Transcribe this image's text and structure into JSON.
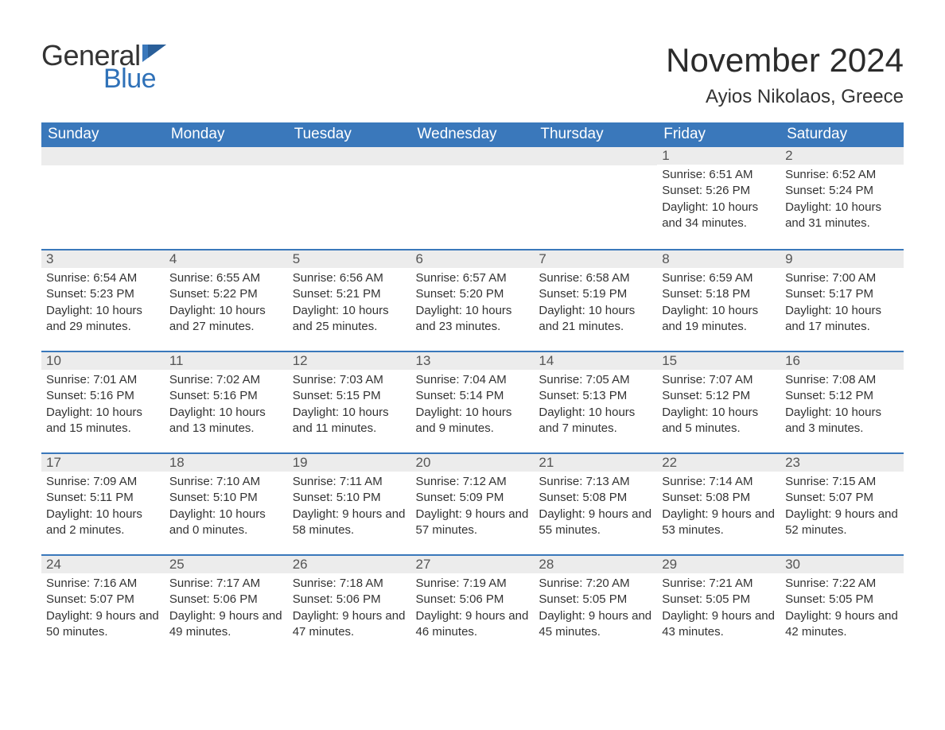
{
  "brand": {
    "word1": "General",
    "word2": "Blue"
  },
  "title": "November 2024",
  "location": "Ayios Nikolaos, Greece",
  "colors": {
    "header_bg": "#3a78bb",
    "header_text": "#ffffff",
    "daynum_bg": "#ececec",
    "border_top": "#3a78bb",
    "text": "#333333",
    "brand_blue": "#2f71b8",
    "page_bg": "#ffffff"
  },
  "typography": {
    "title_fontsize": 42,
    "location_fontsize": 24,
    "header_fontsize": 19,
    "daynum_fontsize": 17,
    "body_fontsize": 15
  },
  "calendar": {
    "columns": [
      "Sunday",
      "Monday",
      "Tuesday",
      "Wednesday",
      "Thursday",
      "Friday",
      "Saturday"
    ],
    "weeks": [
      [
        {
          "empty": true
        },
        {
          "empty": true
        },
        {
          "empty": true
        },
        {
          "empty": true
        },
        {
          "empty": true
        },
        {
          "day": "1",
          "sunrise": "Sunrise: 6:51 AM",
          "sunset": "Sunset: 5:26 PM",
          "daylight": "Daylight: 10 hours and 34 minutes."
        },
        {
          "day": "2",
          "sunrise": "Sunrise: 6:52 AM",
          "sunset": "Sunset: 5:24 PM",
          "daylight": "Daylight: 10 hours and 31 minutes."
        }
      ],
      [
        {
          "day": "3",
          "sunrise": "Sunrise: 6:54 AM",
          "sunset": "Sunset: 5:23 PM",
          "daylight": "Daylight: 10 hours and 29 minutes."
        },
        {
          "day": "4",
          "sunrise": "Sunrise: 6:55 AM",
          "sunset": "Sunset: 5:22 PM",
          "daylight": "Daylight: 10 hours and 27 minutes."
        },
        {
          "day": "5",
          "sunrise": "Sunrise: 6:56 AM",
          "sunset": "Sunset: 5:21 PM",
          "daylight": "Daylight: 10 hours and 25 minutes."
        },
        {
          "day": "6",
          "sunrise": "Sunrise: 6:57 AM",
          "sunset": "Sunset: 5:20 PM",
          "daylight": "Daylight: 10 hours and 23 minutes."
        },
        {
          "day": "7",
          "sunrise": "Sunrise: 6:58 AM",
          "sunset": "Sunset: 5:19 PM",
          "daylight": "Daylight: 10 hours and 21 minutes."
        },
        {
          "day": "8",
          "sunrise": "Sunrise: 6:59 AM",
          "sunset": "Sunset: 5:18 PM",
          "daylight": "Daylight: 10 hours and 19 minutes."
        },
        {
          "day": "9",
          "sunrise": "Sunrise: 7:00 AM",
          "sunset": "Sunset: 5:17 PM",
          "daylight": "Daylight: 10 hours and 17 minutes."
        }
      ],
      [
        {
          "day": "10",
          "sunrise": "Sunrise: 7:01 AM",
          "sunset": "Sunset: 5:16 PM",
          "daylight": "Daylight: 10 hours and 15 minutes."
        },
        {
          "day": "11",
          "sunrise": "Sunrise: 7:02 AM",
          "sunset": "Sunset: 5:16 PM",
          "daylight": "Daylight: 10 hours and 13 minutes."
        },
        {
          "day": "12",
          "sunrise": "Sunrise: 7:03 AM",
          "sunset": "Sunset: 5:15 PM",
          "daylight": "Daylight: 10 hours and 11 minutes."
        },
        {
          "day": "13",
          "sunrise": "Sunrise: 7:04 AM",
          "sunset": "Sunset: 5:14 PM",
          "daylight": "Daylight: 10 hours and 9 minutes."
        },
        {
          "day": "14",
          "sunrise": "Sunrise: 7:05 AM",
          "sunset": "Sunset: 5:13 PM",
          "daylight": "Daylight: 10 hours and 7 minutes."
        },
        {
          "day": "15",
          "sunrise": "Sunrise: 7:07 AM",
          "sunset": "Sunset: 5:12 PM",
          "daylight": "Daylight: 10 hours and 5 minutes."
        },
        {
          "day": "16",
          "sunrise": "Sunrise: 7:08 AM",
          "sunset": "Sunset: 5:12 PM",
          "daylight": "Daylight: 10 hours and 3 minutes."
        }
      ],
      [
        {
          "day": "17",
          "sunrise": "Sunrise: 7:09 AM",
          "sunset": "Sunset: 5:11 PM",
          "daylight": "Daylight: 10 hours and 2 minutes."
        },
        {
          "day": "18",
          "sunrise": "Sunrise: 7:10 AM",
          "sunset": "Sunset: 5:10 PM",
          "daylight": "Daylight: 10 hours and 0 minutes."
        },
        {
          "day": "19",
          "sunrise": "Sunrise: 7:11 AM",
          "sunset": "Sunset: 5:10 PM",
          "daylight": "Daylight: 9 hours and 58 minutes."
        },
        {
          "day": "20",
          "sunrise": "Sunrise: 7:12 AM",
          "sunset": "Sunset: 5:09 PM",
          "daylight": "Daylight: 9 hours and 57 minutes."
        },
        {
          "day": "21",
          "sunrise": "Sunrise: 7:13 AM",
          "sunset": "Sunset: 5:08 PM",
          "daylight": "Daylight: 9 hours and 55 minutes."
        },
        {
          "day": "22",
          "sunrise": "Sunrise: 7:14 AM",
          "sunset": "Sunset: 5:08 PM",
          "daylight": "Daylight: 9 hours and 53 minutes."
        },
        {
          "day": "23",
          "sunrise": "Sunrise: 7:15 AM",
          "sunset": "Sunset: 5:07 PM",
          "daylight": "Daylight: 9 hours and 52 minutes."
        }
      ],
      [
        {
          "day": "24",
          "sunrise": "Sunrise: 7:16 AM",
          "sunset": "Sunset: 5:07 PM",
          "daylight": "Daylight: 9 hours and 50 minutes."
        },
        {
          "day": "25",
          "sunrise": "Sunrise: 7:17 AM",
          "sunset": "Sunset: 5:06 PM",
          "daylight": "Daylight: 9 hours and 49 minutes."
        },
        {
          "day": "26",
          "sunrise": "Sunrise: 7:18 AM",
          "sunset": "Sunset: 5:06 PM",
          "daylight": "Daylight: 9 hours and 47 minutes."
        },
        {
          "day": "27",
          "sunrise": "Sunrise: 7:19 AM",
          "sunset": "Sunset: 5:06 PM",
          "daylight": "Daylight: 9 hours and 46 minutes."
        },
        {
          "day": "28",
          "sunrise": "Sunrise: 7:20 AM",
          "sunset": "Sunset: 5:05 PM",
          "daylight": "Daylight: 9 hours and 45 minutes."
        },
        {
          "day": "29",
          "sunrise": "Sunrise: 7:21 AM",
          "sunset": "Sunset: 5:05 PM",
          "daylight": "Daylight: 9 hours and 43 minutes."
        },
        {
          "day": "30",
          "sunrise": "Sunrise: 7:22 AM",
          "sunset": "Sunset: 5:05 PM",
          "daylight": "Daylight: 9 hours and 42 minutes."
        }
      ]
    ]
  }
}
